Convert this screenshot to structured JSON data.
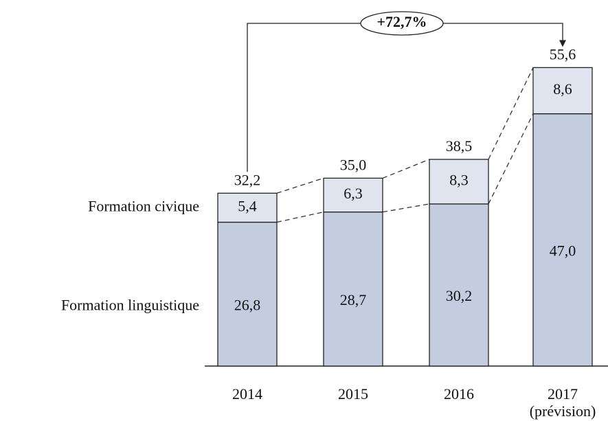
{
  "chart_data": {
    "type": "stacked_bar",
    "categories": [
      "2014",
      "2015",
      "2016",
      "2017"
    ],
    "category_notes": [
      null,
      null,
      null,
      "(prévision)"
    ],
    "series": [
      {
        "name": "Formation linguistique",
        "color": "#c4cce0",
        "values": [
          26.8,
          28.7,
          30.2,
          47.0
        ],
        "value_labels": [
          "26,8",
          "28,7",
          "30,2",
          "47,0"
        ]
      },
      {
        "name": "Formation civique",
        "color": "#dfe4ef",
        "values": [
          5.4,
          6.3,
          8.3,
          8.6
        ],
        "value_labels": [
          "5,4",
          "6,3",
          "8,3",
          "8,6"
        ]
      }
    ],
    "totals": [
      32.2,
      35.0,
      38.5,
      55.6
    ],
    "total_labels": [
      "32,2",
      "35,0",
      "38,5",
      "55,6"
    ],
    "annotation": "+72,7%",
    "ylim": [
      0,
      60
    ]
  }
}
